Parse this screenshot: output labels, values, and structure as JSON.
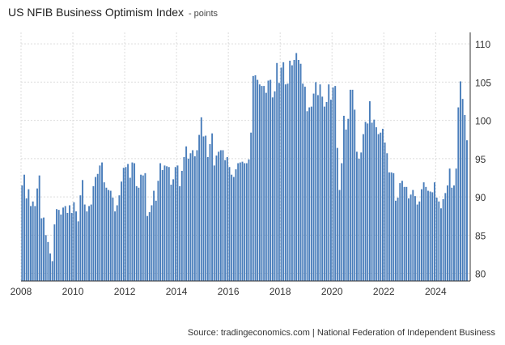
{
  "header": {
    "title": "US NFIB Business Optimism Index",
    "unit": "- points"
  },
  "footer": {
    "source": "Source: tradingeconomics.com | National Federation of Independent Business"
  },
  "colors": {
    "bar": "#4a7ebb",
    "grid": "#dcdcdc",
    "axis": "#333333"
  },
  "chart_data": {
    "type": "bar",
    "title": "US NFIB Business Optimism Index",
    "subtitle": "- points",
    "x_start": "2008-01",
    "frequency": "monthly",
    "x_tick_labels": [
      "2008",
      "2010",
      "2012",
      "2014",
      "2016",
      "2018",
      "2020",
      "2022",
      "2024"
    ],
    "y_ticks": [
      80,
      85,
      90,
      95,
      100,
      105,
      110
    ],
    "ylim": [
      79,
      111.5
    ],
    "grid": true,
    "y_axis_side": "right",
    "values": [
      91.5,
      92.9,
      89.8,
      91.0,
      88.8,
      89.4,
      88.8,
      91.1,
      92.8,
      87.2,
      87.3,
      85.0,
      84.1,
      82.6,
      81.6,
      86.4,
      88.4,
      88.3,
      87.7,
      88.6,
      88.8,
      87.9,
      88.9,
      87.9,
      89.3,
      88.1,
      86.8,
      90.2,
      92.2,
      89.0,
      88.1,
      88.8,
      89.0,
      91.4,
      92.6,
      93.0,
      94.1,
      94.5,
      91.9,
      91.2,
      90.9,
      90.8,
      89.9,
      88.1,
      88.9,
      90.2,
      92.0,
      93.8,
      93.9,
      94.3,
      92.5,
      94.5,
      94.4,
      91.4,
      91.2,
      92.9,
      92.8,
      93.1,
      87.5,
      88.0,
      88.9,
      90.8,
      89.5,
      92.1,
      94.4,
      93.5,
      94.1,
      94.0,
      93.9,
      91.6,
      92.3,
      93.9,
      94.1,
      91.4,
      93.4,
      95.2,
      96.6,
      95.0,
      95.7,
      96.1,
      95.3,
      96.1,
      98.1,
      100.4,
      97.9,
      98.0,
      95.2,
      96.9,
      98.3,
      94.1,
      95.4,
      95.9,
      96.1,
      96.1,
      94.8,
      95.2,
      93.9,
      92.9,
      92.6,
      93.6,
      94.4,
      94.5,
      94.6,
      94.4,
      94.4,
      94.9,
      98.4,
      105.8,
      105.9,
      105.3,
      104.7,
      104.5,
      104.5,
      103.6,
      105.2,
      105.3,
      103.0,
      103.8,
      107.5,
      104.9,
      106.9,
      107.6,
      104.7,
      104.8,
      107.8,
      107.2,
      107.9,
      108.8,
      107.9,
      107.4,
      104.8,
      104.4,
      101.2,
      101.7,
      101.8,
      103.5,
      105.0,
      103.3,
      104.7,
      103.1,
      101.8,
      102.4,
      104.7,
      102.7,
      104.3,
      104.5,
      96.4,
      90.9,
      94.4,
      100.6,
      98.8,
      100.2,
      104.0,
      104.0,
      101.4,
      95.9,
      95.0,
      95.8,
      98.2,
      99.8,
      99.6,
      102.5,
      99.7,
      100.1,
      99.1,
      98.2,
      98.4,
      98.9,
      97.1,
      95.7,
      93.2,
      93.2,
      93.1,
      89.5,
      89.9,
      91.8,
      92.1,
      91.3,
      91.3,
      89.8,
      90.3,
      90.9,
      90.1,
      89.0,
      89.4,
      91.0,
      91.9,
      91.3,
      90.8,
      90.7,
      90.6,
      91.9,
      89.9,
      89.4,
      88.5,
      89.7,
      90.5,
      91.5,
      93.7,
      91.2,
      91.5,
      93.7,
      101.7,
      105.1,
      102.8,
      100.7,
      97.4
    ]
  }
}
